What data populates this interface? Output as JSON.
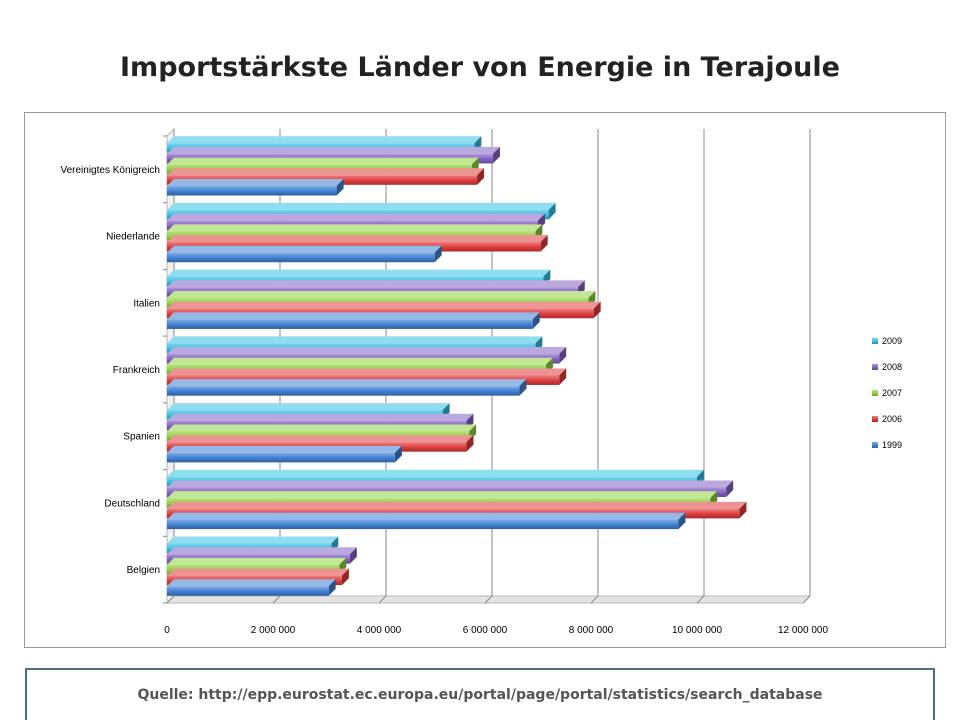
{
  "title": "Importstärkste Länder von Energie in Terajoule",
  "source": "Quelle: http://epp.eurostat.ec.europa.eu/portal/page/portal/statistics/search_database",
  "chart_data": {
    "type": "bar",
    "orientation": "horizontal",
    "style": "3d-clustered",
    "categories": [
      "Belgien",
      "Deutschland",
      "Spanien",
      "Frankreich",
      "Italien",
      "Niederlande",
      "Vereinigtes Königreich"
    ],
    "series": [
      {
        "name": "1999",
        "color": "#3f7fd3",
        "values": [
          3050000,
          9650000,
          4300000,
          6650000,
          6900000,
          5050000,
          3200000
        ]
      },
      {
        "name": "2006",
        "color": "#e03b3b",
        "values": [
          3300000,
          10800000,
          5650000,
          7400000,
          8050000,
          7050000,
          5850000
        ]
      },
      {
        "name": "2007",
        "color": "#8fd13d",
        "values": [
          3250000,
          10250000,
          5700000,
          7150000,
          7950000,
          6950000,
          5750000
        ]
      },
      {
        "name": "2008",
        "color": "#8460c4",
        "values": [
          3450000,
          10550000,
          5650000,
          7400000,
          7750000,
          7000000,
          6150000
        ]
      },
      {
        "name": "2009",
        "color": "#35c1e3",
        "values": [
          3100000,
          10000000,
          5200000,
          6950000,
          7100000,
          7200000,
          5800000
        ]
      }
    ],
    "xlim": [
      0,
      12000000
    ],
    "xticks": [
      "0",
      "2 000 000",
      "4 000 000",
      "6 000 000",
      "8 000 000",
      "10 000 000",
      "12 000 000"
    ],
    "grid": true,
    "legend": "right",
    "legend_order": [
      "2009",
      "2008",
      "2007",
      "2006",
      "1999"
    ]
  }
}
